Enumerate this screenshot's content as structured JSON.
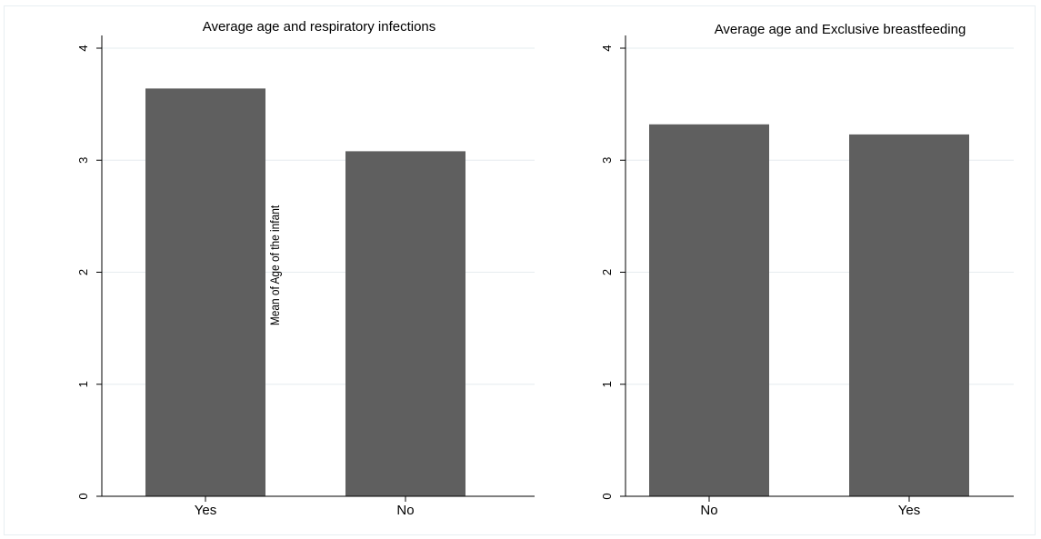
{
  "chart_data": [
    {
      "type": "bar",
      "title": "Average age and respiratory infections",
      "categories": [
        "Yes",
        "No"
      ],
      "values": [
        3.64,
        3.08
      ],
      "ylabel": "Mean of Age of the infant",
      "xlabel": "",
      "ylim": [
        0,
        4
      ],
      "yticks": [
        0,
        1,
        2,
        3,
        4
      ],
      "grid": true,
      "bar_color": "#5f5f5f"
    },
    {
      "type": "bar",
      "title": "Average age and Exclusive breastfeeding",
      "categories": [
        "No",
        "Yes"
      ],
      "values": [
        3.32,
        3.23
      ],
      "xlabel": "",
      "ylim": [
        0,
        4
      ],
      "yticks": [
        0,
        1,
        2,
        3,
        4
      ],
      "grid": true,
      "bar_color": "#5f5f5f"
    }
  ]
}
